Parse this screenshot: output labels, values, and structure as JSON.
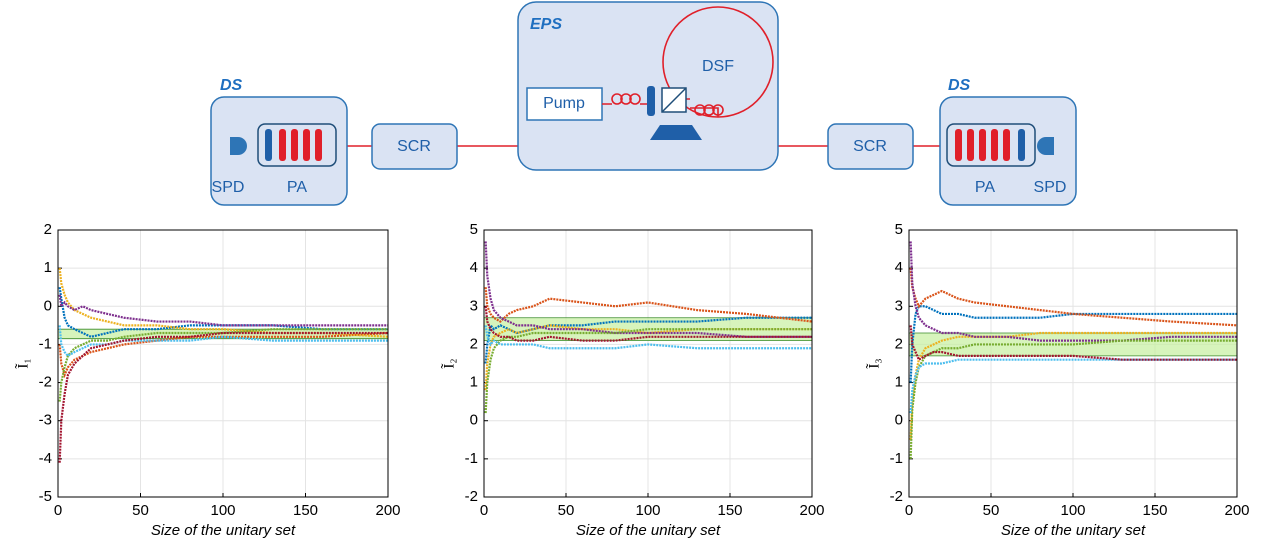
{
  "diagram": {
    "eps": {
      "title": "EPS",
      "fiber": "DSF",
      "pump": "Pump"
    },
    "left": {
      "title": "DS",
      "detector": "SPD",
      "amplifier": "PA",
      "scrambler": "SCR"
    },
    "right": {
      "title": "DS",
      "detector": "SPD",
      "amplifier": "PA",
      "scrambler": "SCR"
    }
  },
  "chart_data": [
    {
      "type": "line",
      "ylabel": "Ĩ₁",
      "xlabel": "Size of the unitary set",
      "xlim": [
        0,
        200
      ],
      "xticks": [
        0,
        50,
        100,
        150,
        200
      ],
      "ylim": [
        -5,
        2
      ],
      "yticks": [
        -5,
        -4,
        -3,
        -2,
        -1,
        0,
        1,
        2
      ],
      "grid": true,
      "band": [
        -0.85,
        -0.6
      ],
      "band_color": "#c6f0a0",
      "x": [
        1,
        2,
        4,
        6,
        10,
        15,
        20,
        30,
        40,
        60,
        80,
        100,
        130,
        160,
        200
      ],
      "series": [
        {
          "color": "#0072BD",
          "values": [
            0.5,
            0.2,
            -0.3,
            -0.5,
            -0.6,
            -0.7,
            -0.8,
            -0.7,
            -0.6,
            -0.6,
            -0.5,
            -0.5,
            -0.5,
            -0.6,
            -0.6
          ]
        },
        {
          "color": "#D95319",
          "values": [
            -1,
            -1.5,
            -1.8,
            -1.6,
            -1.4,
            -1.3,
            -1.2,
            -1.1,
            -1.0,
            -0.9,
            -0.8,
            -0.8,
            -0.8,
            -0.8,
            -0.7
          ]
        },
        {
          "color": "#EDB120",
          "values": [
            1.0,
            0.6,
            0.3,
            0.1,
            -0.1,
            -0.2,
            -0.3,
            -0.4,
            -0.5,
            -0.5,
            -0.6,
            -0.6,
            -0.7,
            -0.7,
            -0.8
          ]
        },
        {
          "color": "#7E2F8E",
          "values": [
            0.3,
            0.0,
            0.1,
            0.0,
            -0.1,
            0.0,
            -0.1,
            -0.2,
            -0.3,
            -0.4,
            -0.4,
            -0.5,
            -0.5,
            -0.5,
            -0.5
          ]
        },
        {
          "color": "#77AC30",
          "values": [
            -2.5,
            -2.0,
            -1.6,
            -1.3,
            -1.1,
            -1.0,
            -0.9,
            -0.9,
            -0.8,
            -0.7,
            -0.7,
            -0.7,
            -0.6,
            -0.6,
            -0.6
          ]
        },
        {
          "color": "#4DBEEE",
          "values": [
            -0.5,
            -1.0,
            -1.2,
            -1.3,
            -1.2,
            -1.1,
            -1.0,
            -1.0,
            -0.9,
            -0.9,
            -0.9,
            -0.8,
            -0.9,
            -0.9,
            -0.9
          ]
        },
        {
          "color": "#A2142F",
          "values": [
            -4.1,
            -3.0,
            -2.3,
            -1.8,
            -1.5,
            -1.3,
            -1.1,
            -1.0,
            -0.9,
            -0.8,
            -0.8,
            -0.7,
            -0.7,
            -0.7,
            -0.7
          ]
        }
      ]
    },
    {
      "type": "line",
      "ylabel": "Ĩ₂",
      "xlabel": "Size of the unitary set",
      "xlim": [
        0,
        200
      ],
      "xticks": [
        0,
        50,
        100,
        150,
        200
      ],
      "ylim": [
        -2,
        5
      ],
      "yticks": [
        -2,
        -1,
        0,
        1,
        2,
        3,
        4,
        5
      ],
      "grid": true,
      "band": [
        2.1,
        2.7
      ],
      "band_color": "#c6f0a0",
      "x": [
        1,
        2,
        4,
        6,
        10,
        15,
        20,
        30,
        40,
        60,
        80,
        100,
        130,
        160,
        200
      ],
      "series": [
        {
          "color": "#0072BD",
          "values": [
            1.5,
            2.0,
            2.5,
            2.4,
            2.5,
            2.4,
            2.3,
            2.4,
            2.5,
            2.5,
            2.6,
            2.6,
            2.6,
            2.7,
            2.7
          ]
        },
        {
          "color": "#D95319",
          "values": [
            3.5,
            3.0,
            2.8,
            2.7,
            2.6,
            2.8,
            2.9,
            3.0,
            3.2,
            3.1,
            3.0,
            3.1,
            2.9,
            2.8,
            2.6
          ]
        },
        {
          "color": "#EDB120",
          "values": [
            0.8,
            1.5,
            2.0,
            2.2,
            2.3,
            2.4,
            2.3,
            2.4,
            2.5,
            2.4,
            2.4,
            2.3,
            2.4,
            2.4,
            2.4
          ]
        },
        {
          "color": "#7E2F8E",
          "values": [
            4.7,
            3.8,
            3.2,
            2.9,
            2.7,
            2.6,
            2.5,
            2.5,
            2.4,
            2.4,
            2.3,
            2.3,
            2.3,
            2.2,
            2.2
          ]
        },
        {
          "color": "#77AC30",
          "values": [
            0.2,
            1.0,
            1.6,
            1.9,
            2.1,
            2.2,
            2.2,
            2.3,
            2.3,
            2.3,
            2.3,
            2.4,
            2.4,
            2.4,
            2.4
          ]
        },
        {
          "color": "#4DBEEE",
          "values": [
            2.5,
            2.2,
            2.0,
            2.1,
            2.0,
            2.0,
            2.0,
            2.0,
            1.9,
            1.9,
            1.9,
            2.0,
            1.9,
            1.9,
            1.9
          ]
        },
        {
          "color": "#A2142F",
          "values": [
            3.0,
            2.6,
            2.4,
            2.3,
            2.2,
            2.2,
            2.1,
            2.1,
            2.2,
            2.1,
            2.1,
            2.2,
            2.2,
            2.2,
            2.2
          ]
        }
      ]
    },
    {
      "type": "line",
      "ylabel": "Ĩ₃",
      "xlabel": "Size of the unitary set",
      "xlim": [
        0,
        200
      ],
      "xticks": [
        0,
        50,
        100,
        150,
        200
      ],
      "ylim": [
        -2,
        5
      ],
      "yticks": [
        -2,
        -1,
        0,
        1,
        2,
        3,
        4,
        5
      ],
      "grid": true,
      "band": [
        1.7,
        2.3
      ],
      "band_color": "#c6f0a0",
      "x": [
        1,
        2,
        4,
        6,
        10,
        15,
        20,
        30,
        40,
        60,
        80,
        100,
        130,
        160,
        200
      ],
      "series": [
        {
          "color": "#0072BD",
          "values": [
            1.0,
            2.0,
            2.8,
            3.0,
            3.0,
            2.9,
            2.8,
            2.8,
            2.7,
            2.7,
            2.7,
            2.8,
            2.8,
            2.8,
            2.8
          ]
        },
        {
          "color": "#D95319",
          "values": [
            4.0,
            3.5,
            3.2,
            3.0,
            3.2,
            3.3,
            3.4,
            3.2,
            3.1,
            3.0,
            2.9,
            2.8,
            2.7,
            2.6,
            2.5
          ]
        },
        {
          "color": "#EDB120",
          "values": [
            -0.5,
            0.5,
            1.2,
            1.6,
            1.9,
            2.0,
            2.1,
            2.2,
            2.2,
            2.2,
            2.3,
            2.3,
            2.3,
            2.3,
            2.3
          ]
        },
        {
          "color": "#7E2F8E",
          "values": [
            4.7,
            3.6,
            3.0,
            2.7,
            2.5,
            2.4,
            2.3,
            2.3,
            2.2,
            2.2,
            2.1,
            2.1,
            2.1,
            2.2,
            2.2
          ]
        },
        {
          "color": "#77AC30",
          "values": [
            -1.0,
            0.3,
            1.0,
            1.4,
            1.7,
            1.8,
            1.9,
            1.9,
            2.0,
            2.0,
            2.0,
            2.0,
            2.1,
            2.1,
            2.1
          ]
        },
        {
          "color": "#4DBEEE",
          "values": [
            0.2,
            0.8,
            1.2,
            1.4,
            1.5,
            1.5,
            1.5,
            1.6,
            1.6,
            1.6,
            1.6,
            1.6,
            1.6,
            1.6,
            1.6
          ]
        },
        {
          "color": "#A2142F",
          "values": [
            2.5,
            2.0,
            1.8,
            1.6,
            1.7,
            1.8,
            1.8,
            1.7,
            1.7,
            1.7,
            1.7,
            1.7,
            1.6,
            1.6,
            1.6
          ]
        }
      ]
    }
  ]
}
